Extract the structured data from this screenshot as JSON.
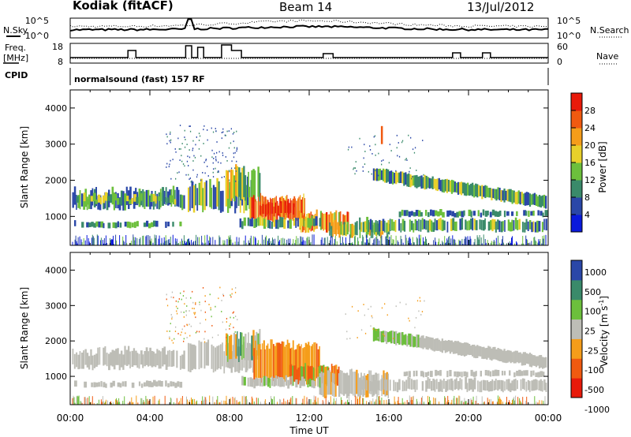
{
  "header": {
    "station": "Kodiak (fitACF)",
    "beam": "Beam 14",
    "date": "13/Jul/2012"
  },
  "top_panels": {
    "nsky_label": "N.Sky",
    "nsearch_label": "N.Search",
    "nsky_ticks": [
      "10^5",
      "10^0"
    ],
    "nsearch_ticks": [
      "10^5",
      "10^0"
    ],
    "freq_label_1": "Freq.",
    "freq_label_2": "[MHz]",
    "freq_ticks": [
      "18",
      "8"
    ],
    "nave_label": "Nave",
    "nave_ticks": [
      "60",
      "0"
    ],
    "cpid_label": "CPID",
    "cpid_text": "normalsound (fast) 157 RF"
  },
  "colors": {
    "power": [
      "#0a1adc",
      "#2a47a8",
      "#3a8a6a",
      "#6cbf3c",
      "#e8d02a",
      "#f59d1a",
      "#f05a10",
      "#e81a0a"
    ],
    "velocity": [
      "#e81a0a",
      "#f05a10",
      "#f59d1a",
      "#bdbdb6",
      "#6cbf3c",
      "#3a8a6a",
      "#2a47a8"
    ]
  },
  "chart_data": [
    {
      "type": "heatmap",
      "name": "power",
      "ylabel": "Slant Range [km]",
      "xlabel": "Time UT",
      "x_ticks": [
        "00:00",
        "04:00",
        "08:00",
        "12:00",
        "16:00",
        "20:00",
        "00:00"
      ],
      "y_ticks": [
        "1000",
        "2000",
        "3000",
        "4000"
      ],
      "xlim": [
        0,
        24
      ],
      "ylim": [
        200,
        4500
      ],
      "colorbar_label": "Power [dB]",
      "colorbar_ticks": [
        "4",
        "8",
        "12",
        "16",
        "20",
        "24",
        "28"
      ],
      "colorbar_range": [
        0,
        32
      ]
    },
    {
      "type": "heatmap",
      "name": "velocity",
      "ylabel": "Slant Range [km]",
      "xlabel": "Time UT",
      "x_ticks": [
        "00:00",
        "04:00",
        "08:00",
        "12:00",
        "16:00",
        "20:00",
        "00:00"
      ],
      "y_ticks": [
        "1000",
        "2000",
        "3000",
        "4000"
      ],
      "xlim": [
        0,
        24
      ],
      "ylim": [
        200,
        4500
      ],
      "colorbar_label": "Velocity [m s^-1]",
      "colorbar_ticks": [
        "1000",
        "500",
        "100",
        "25",
        "-25",
        "-100",
        "-500",
        "-1000"
      ]
    }
  ]
}
